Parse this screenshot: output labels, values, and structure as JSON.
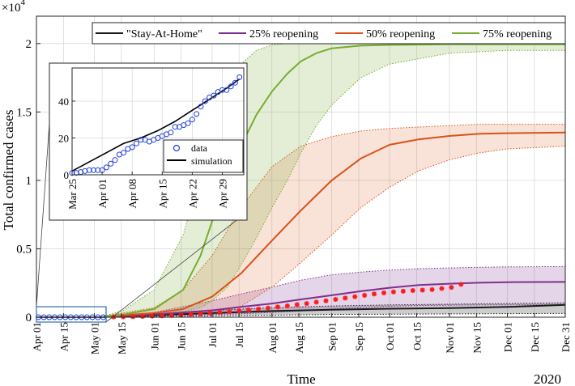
{
  "chart_data": {
    "type": "line",
    "title": "",
    "xlabel": "Time",
    "ylabel": "Total confirmed cases",
    "y_multiplier_label": "×10",
    "y_multiplier_exponent": "4",
    "year_label": "2020",
    "grid": true,
    "legend_position": "top",
    "xlim_days_from_apr01": [
      0,
      274
    ],
    "ylim_scaled": [
      0,
      2.2
    ],
    "x_ticks": [
      {
        "label": "Apr 01",
        "day": 0
      },
      {
        "label": "Apr 15",
        "day": 14
      },
      {
        "label": "May 01",
        "day": 30
      },
      {
        "label": "May 15",
        "day": 44
      },
      {
        "label": "Jun 01",
        "day": 61
      },
      {
        "label": "Jun 15",
        "day": 75
      },
      {
        "label": "Jul 01",
        "day": 91
      },
      {
        "label": "Jul 15",
        "day": 105
      },
      {
        "label": "Aug 01",
        "day": 122
      },
      {
        "label": "Aug 15",
        "day": 136
      },
      {
        "label": "Sep 01",
        "day": 153
      },
      {
        "label": "Sep 15",
        "day": 167
      },
      {
        "label": "Oct 01",
        "day": 183
      },
      {
        "label": "Oct 15",
        "day": 197
      },
      {
        "label": "Nov 01",
        "day": 214
      },
      {
        "label": "Nov 15",
        "day": 228
      },
      {
        "label": "Dec 01",
        "day": 244
      },
      {
        "label": "Dec 15",
        "day": 258
      },
      {
        "label": "Dec 31",
        "day": 274
      }
    ],
    "y_ticks": [
      {
        "label": "0",
        "value": 0
      },
      {
        "label": "0.5",
        "value": 0.5
      },
      {
        "label": "1",
        "value": 1
      },
      {
        "label": "1.5",
        "value": 1.5
      },
      {
        "label": "2",
        "value": 2
      }
    ],
    "series": [
      {
        "name": "\"Stay-At-Home\"",
        "color": "#1a1a1a",
        "band_fill": "#1a1a1a",
        "band_opacity": 0.22,
        "x": [
          35,
          61,
          91,
          122,
          153,
          183,
          214,
          244,
          274
        ],
        "y": [
          0.005,
          0.015,
          0.03,
          0.045,
          0.055,
          0.062,
          0.067,
          0.075,
          0.09
        ],
        "upper": [
          0.007,
          0.025,
          0.05,
          0.07,
          0.082,
          0.09,
          0.095,
          0.1,
          0.105
        ],
        "lower": [
          0.002,
          0.005,
          0.01,
          0.015,
          0.02,
          0.022,
          0.024,
          0.026,
          0.028
        ]
      },
      {
        "name": "25% reopening",
        "color": "#7e2f8e",
        "band_fill": "#7e2f8e",
        "band_opacity": 0.2,
        "x": [
          35,
          61,
          91,
          106,
          122,
          137,
          153,
          168,
          183,
          198,
          214,
          229,
          244,
          274
        ],
        "y": [
          0.005,
          0.02,
          0.05,
          0.075,
          0.1,
          0.13,
          0.16,
          0.19,
          0.215,
          0.235,
          0.245,
          0.252,
          0.256,
          0.258
        ],
        "upper": [
          0.007,
          0.035,
          0.12,
          0.17,
          0.22,
          0.27,
          0.31,
          0.33,
          0.345,
          0.355,
          0.36,
          0.365,
          0.368,
          0.37
        ],
        "lower": [
          0.003,
          0.01,
          0.02,
          0.025,
          0.035,
          0.045,
          0.06,
          0.07,
          0.08,
          0.085,
          0.088,
          0.09,
          0.09,
          0.09
        ]
      },
      {
        "name": "50% reopening",
        "color": "#d95319",
        "band_fill": "#d95319",
        "band_opacity": 0.17,
        "x": [
          35,
          61,
          76,
          91,
          106,
          122,
          137,
          153,
          168,
          183,
          198,
          214,
          229,
          244,
          274
        ],
        "y": [
          0.005,
          0.03,
          0.06,
          0.15,
          0.32,
          0.56,
          0.78,
          1.0,
          1.16,
          1.26,
          1.3,
          1.325,
          1.34,
          1.345,
          1.35
        ],
        "upper": [
          0.008,
          0.07,
          0.2,
          0.45,
          0.8,
          1.1,
          1.25,
          1.32,
          1.36,
          1.38,
          1.39,
          1.4,
          1.41,
          1.41,
          1.41
        ],
        "lower": [
          0.003,
          0.01,
          0.02,
          0.03,
          0.08,
          0.22,
          0.4,
          0.6,
          0.8,
          0.95,
          1.07,
          1.15,
          1.2,
          1.23,
          1.25
        ]
      },
      {
        "name": "75% reopening",
        "color": "#77ac30",
        "band_fill": "#77ac30",
        "band_opacity": 0.2,
        "x": [
          35,
          45,
          61,
          76,
          85,
          91,
          99,
          106,
          114,
          122,
          130,
          137,
          145,
          153,
          168,
          183,
          214,
          244,
          274
        ],
        "y": [
          0.005,
          0.02,
          0.06,
          0.2,
          0.45,
          0.7,
          1.0,
          1.25,
          1.48,
          1.65,
          1.78,
          1.87,
          1.93,
          1.965,
          1.985,
          1.99,
          1.995,
          1.995,
          1.995
        ],
        "upper": [
          0.008,
          0.05,
          0.2,
          0.6,
          1.05,
          1.4,
          1.68,
          1.85,
          1.95,
          1.99,
          2.0,
          2.005,
          2.005,
          2.005,
          2.005,
          2.005,
          2.005,
          2.005,
          2.005
        ],
        "lower": [
          0.003,
          0.01,
          0.02,
          0.04,
          0.07,
          0.12,
          0.22,
          0.38,
          0.58,
          0.8,
          1.0,
          1.2,
          1.4,
          1.55,
          1.75,
          1.85,
          1.93,
          1.95,
          1.95
        ]
      }
    ],
    "observed": {
      "name": "observed cases",
      "color": "#ff1a1a",
      "x": [
        40,
        45,
        50,
        55,
        60,
        65,
        70,
        75,
        80,
        85,
        90,
        95,
        100,
        105,
        110,
        115,
        120,
        125,
        130,
        135,
        140,
        145,
        150,
        155,
        160,
        165,
        170,
        175,
        180,
        185,
        190,
        195,
        200,
        205,
        210,
        215,
        220
      ],
      "y": [
        0.002,
        0.003,
        0.004,
        0.006,
        0.008,
        0.01,
        0.013,
        0.017,
        0.021,
        0.025,
        0.03,
        0.035,
        0.041,
        0.047,
        0.053,
        0.06,
        0.067,
        0.075,
        0.083,
        0.092,
        0.1,
        0.11,
        0.12,
        0.13,
        0.14,
        0.15,
        0.16,
        0.17,
        0.178,
        0.185,
        0.19,
        0.195,
        0.198,
        0.202,
        0.21,
        0.218,
        0.24
      ]
    },
    "zoom_region": {
      "x_days": [
        0,
        36
      ],
      "inset": {
        "x_ticks": [
          {
            "label": "Mar 25",
            "day": 0
          },
          {
            "label": "Apr 01",
            "day": 7
          },
          {
            "label": "Apr 08",
            "day": 14
          },
          {
            "label": "Apr 15",
            "day": 21
          },
          {
            "label": "Apr 22",
            "day": 28
          },
          {
            "label": "Apr 29",
            "day": 35
          }
        ],
        "y_ticks": [
          {
            "label": "0",
            "value": 0
          },
          {
            "label": "20",
            "value": 20
          },
          {
            "label": "40",
            "value": 40
          }
        ],
        "xlim": [
          0,
          40
        ],
        "ylim": [
          0,
          58
        ],
        "legend": [
          {
            "label": "data",
            "marker": "circle",
            "color": "#1f3fd6"
          },
          {
            "label": "simulation",
            "marker": "line",
            "color": "#000000"
          }
        ],
        "simulation": {
          "x": [
            0,
            4,
            8,
            12,
            16,
            20,
            24,
            28,
            32,
            36,
            39
          ],
          "y": [
            2,
            7,
            12,
            17,
            20,
            24,
            29,
            35,
            41,
            47,
            52
          ]
        },
        "data": {
          "x": [
            0,
            1,
            2,
            3,
            4,
            5,
            6,
            7,
            8,
            9,
            10,
            11,
            12,
            13,
            14,
            15,
            16,
            17,
            18,
            19,
            20,
            21,
            22,
            23,
            24,
            25,
            26,
            27,
            28,
            29,
            30,
            31,
            32,
            33,
            34,
            35,
            36,
            37,
            38,
            39
          ],
          "y": [
            1,
            1,
            1.5,
            2,
            2.5,
            2.5,
            2.5,
            2.5,
            4,
            6,
            8,
            11,
            12,
            14,
            15,
            17,
            19,
            19,
            18,
            19,
            20,
            21,
            22,
            23,
            26,
            26,
            27,
            28,
            30,
            33,
            37,
            40,
            42,
            43,
            45,
            46,
            46,
            48,
            50,
            53
          ]
        }
      }
    }
  }
}
